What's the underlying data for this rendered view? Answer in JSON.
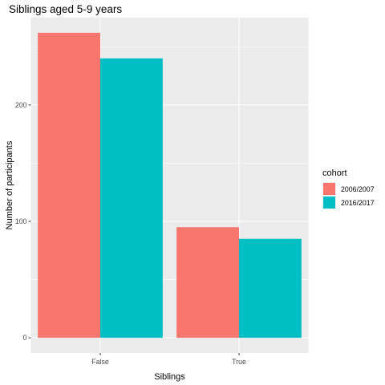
{
  "chart_data": {
    "type": "bar",
    "title": "Siblings aged 5-9 years",
    "xlabel": "Siblings",
    "ylabel": "Number of participants",
    "categories": [
      "False",
      "True"
    ],
    "series": [
      {
        "name": "2006/2007",
        "color": "#F8766D",
        "values": [
          262,
          95
        ]
      },
      {
        "name": "2016/2017",
        "color": "#00BFC4",
        "values": [
          240,
          85
        ]
      }
    ],
    "yticks": [
      0,
      100,
      200
    ],
    "ylim": [
      -13,
      275
    ],
    "legend_title": "cohort",
    "legend_position": "right",
    "panel_background": "#EBEBEB",
    "grid_color": "#FFFFFF"
  }
}
